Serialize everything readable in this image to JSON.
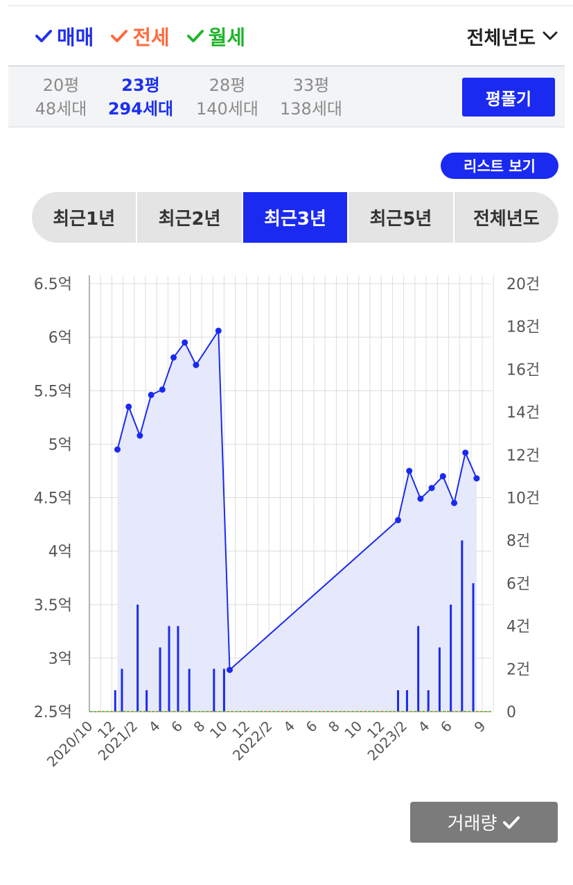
{
  "trade_filters": [
    {
      "label": "매매",
      "color": "#2130ee"
    },
    {
      "label": "전세",
      "color": "#ff6a3d"
    },
    {
      "label": "월세",
      "color": "#21b52b"
    }
  ],
  "year_select": "전체년도",
  "sizes": [
    {
      "pyeong": "20평",
      "units": "48세대",
      "active": false
    },
    {
      "pyeong": "23평",
      "units": "294세대",
      "active": true
    },
    {
      "pyeong": "28평",
      "units": "140세대",
      "active": false
    },
    {
      "pyeong": "33평",
      "units": "138세대",
      "active": false
    }
  ],
  "pyeong_button": "평풀기",
  "list_button": "리스트 보기",
  "periods": [
    "최근1년",
    "최근2년",
    "최근3년",
    "최근5년",
    "전체년도"
  ],
  "active_period": "최근3년",
  "volume_button": "거래량",
  "colors": {
    "accent": "#1a2af0",
    "area_fill": "#e6e9fb",
    "gridline": "#dcdcdc"
  },
  "chart_data": {
    "type": "line",
    "x_tick_labels": [
      "2020/10",
      "12",
      "2021/2",
      "4",
      "6",
      "8",
      "10",
      "12",
      "2022/2",
      "4",
      "6",
      "8",
      "10",
      "12",
      "2023/2",
      "4",
      "6",
      "9"
    ],
    "y_left_ticks": [
      "2.5억",
      "3억",
      "3.5억",
      "4억",
      "4.5억",
      "5억",
      "5.5억",
      "6억",
      "6.5억"
    ],
    "y_right_ticks": [
      "0",
      "2건",
      "4건",
      "6건",
      "8건",
      "10건",
      "12건",
      "14건",
      "16건",
      "18건",
      "20건"
    ],
    "ylim_left": [
      2.5,
      6.5
    ],
    "ylim_right": [
      0,
      20
    ],
    "price_series": {
      "x": [
        2.5,
        3.5,
        4.5,
        5.5,
        6.5,
        7.5,
        8.5,
        9.5,
        11.5,
        12.5,
        27.5,
        28.5,
        29.5,
        30.5,
        31.5,
        32.5,
        33.5,
        34.5
      ],
      "y": [
        4.95,
        5.35,
        5.08,
        5.46,
        5.51,
        5.81,
        5.95,
        5.74,
        6.06,
        2.89,
        4.29,
        4.75,
        4.49,
        4.59,
        4.7,
        4.45,
        4.92,
        4.68
      ]
    },
    "volume_series": {
      "x": [
        2.3,
        2.9,
        4.3,
        5.1,
        6.3,
        7.1,
        7.9,
        8.9,
        11.1,
        12.0,
        27.5,
        28.3,
        29.3,
        30.2,
        31.2,
        32.2,
        33.2,
        34.2
      ],
      "y": [
        1,
        2,
        5,
        1,
        3,
        4,
        4,
        2,
        2,
        2,
        1,
        1,
        4,
        1,
        3,
        5,
        8,
        6
      ]
    }
  }
}
